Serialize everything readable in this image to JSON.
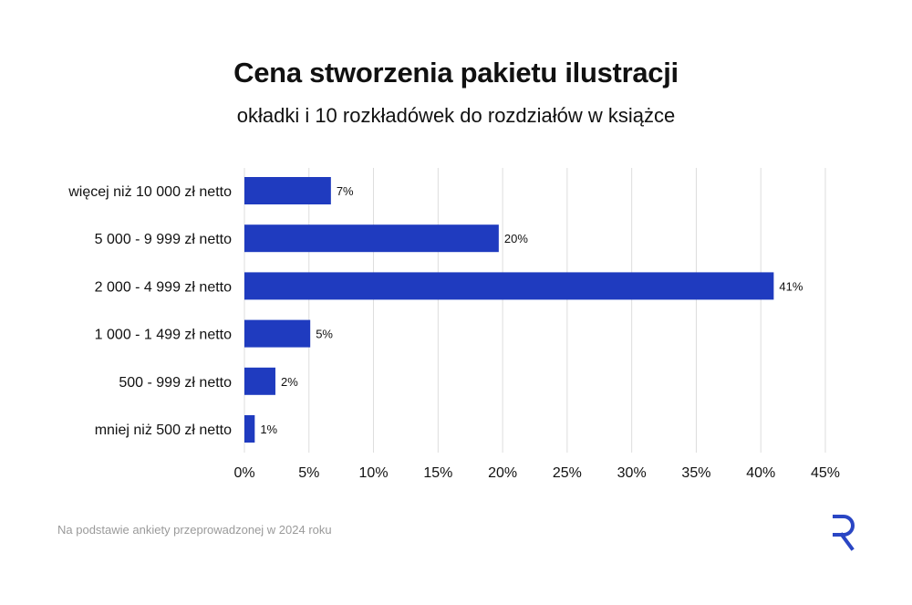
{
  "title": "Cena stworzenia pakietu ilustracji",
  "subtitle": "okładki i 10 rozkładówek do rozdziałów w książce",
  "footer": "Na podstawie ankiety przeprowadzonej w 2024 roku",
  "logo": {
    "name": "R"
  },
  "colors": {
    "bar": "#1f3bbf",
    "grid": "#dddddd",
    "text": "#111111",
    "footer": "#9a9a9a",
    "logo": "#2a46c4"
  },
  "chart_data": {
    "type": "bar",
    "orientation": "horizontal",
    "title": "Cena stworzenia pakietu ilustracji",
    "subtitle": "okładki i 10 rozkładówek do rozdziałów w książce",
    "categories": [
      "więcej niż 10 000 zł netto",
      "5 000 - 9 999 zł netto",
      "2 000 - 4 999 zł netto",
      "1 000 - 1 499 zł netto",
      "500 - 999 zł netto",
      "mniej niż 500 zł netto"
    ],
    "values": [
      6.7,
      19.7,
      41,
      5.1,
      2.4,
      0.8
    ],
    "data_labels": [
      "7%",
      "20%",
      "41%",
      "5%",
      "2%",
      "1%"
    ],
    "xlim": [
      0,
      45
    ],
    "x_ticks": [
      0,
      5,
      10,
      15,
      20,
      25,
      30,
      35,
      40,
      45
    ],
    "x_tick_labels": [
      "0%",
      "5%",
      "10%",
      "15%",
      "20%",
      "25%",
      "30%",
      "35%",
      "40%",
      "45%"
    ],
    "grid": "vertical",
    "legend": "none",
    "xlabel": "",
    "ylabel": ""
  }
}
